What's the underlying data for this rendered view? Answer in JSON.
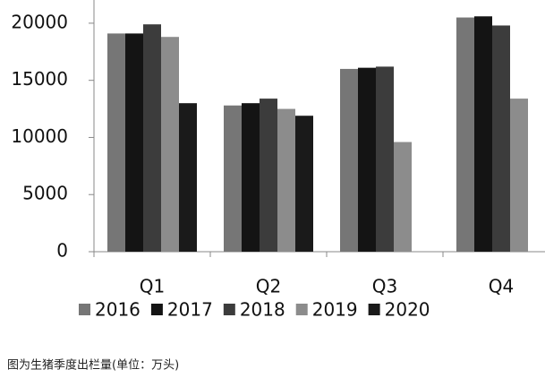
{
  "chart_data": {
    "type": "bar",
    "caption": "图为生猪季度出栏量(单位：万头)",
    "categories": [
      "Q1",
      "Q2",
      "Q3",
      "Q4"
    ],
    "series": [
      {
        "name": "2016",
        "color": "#767676",
        "values": [
          19100,
          12800,
          16000,
          20500
        ]
      },
      {
        "name": "2017",
        "color": "#141414",
        "values": [
          19100,
          13000,
          16100,
          20600
        ]
      },
      {
        "name": "2018",
        "color": "#3c3c3c",
        "values": [
          19900,
          13400,
          16200,
          19800
        ]
      },
      {
        "name": "2019",
        "color": "#8c8c8c",
        "values": [
          18800,
          12500,
          9600,
          13400
        ]
      },
      {
        "name": "2020",
        "color": "#1a1a1a",
        "values": [
          13000,
          11900,
          null,
          null
        ]
      }
    ],
    "ylim": [
      0,
      22000
    ],
    "yticks": [
      0,
      5000,
      10000,
      15000,
      20000
    ],
    "grid": false
  }
}
